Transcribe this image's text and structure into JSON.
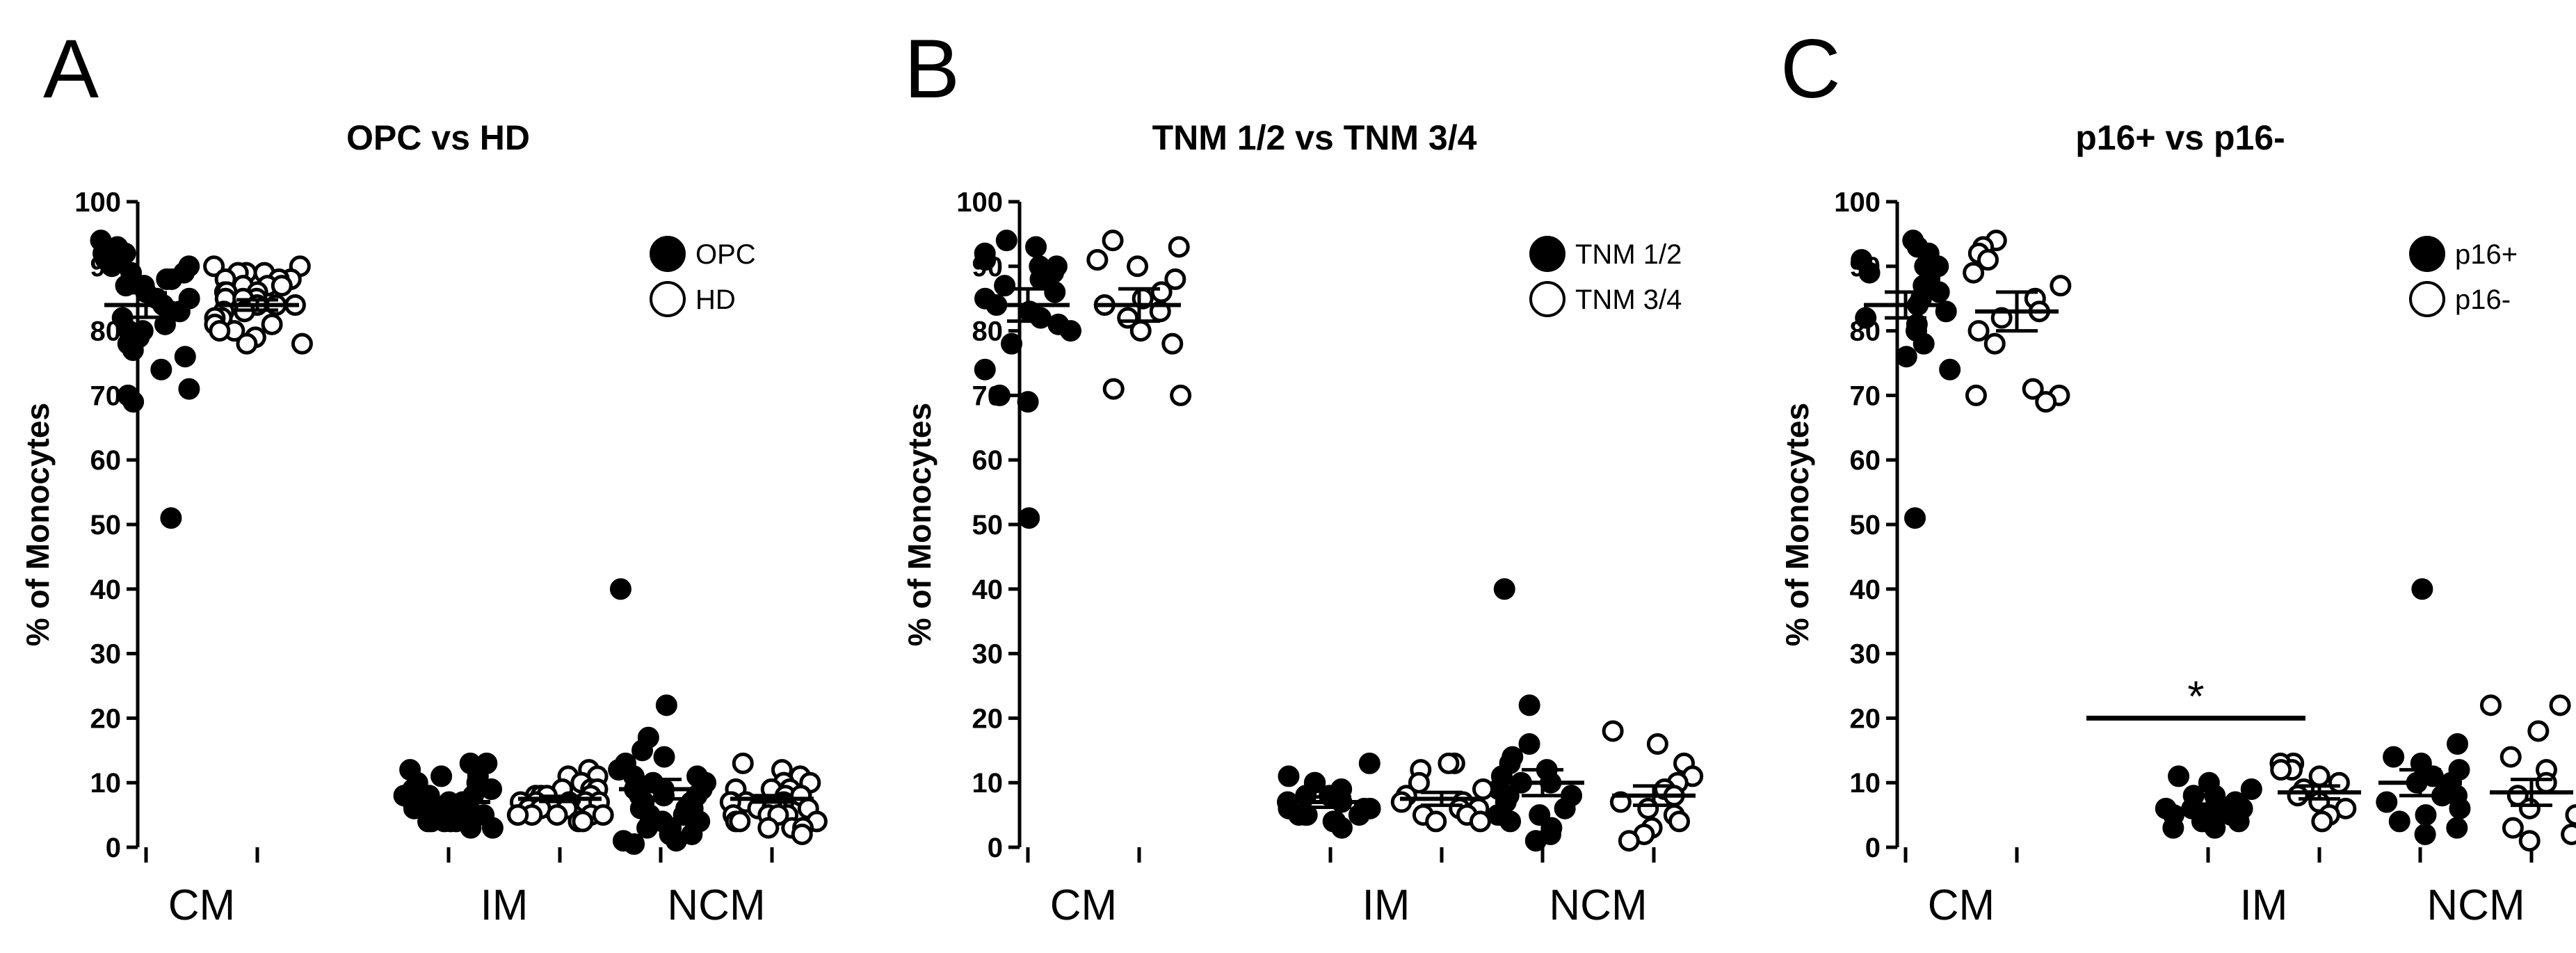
{
  "chart_data": [
    {
      "panel": "A",
      "type": "scatter",
      "title": "OPC vs HD",
      "ylabel": "% of Monocytes",
      "ylim": [
        0,
        100
      ],
      "yticks": [
        0,
        10,
        20,
        30,
        40,
        50,
        60,
        70,
        80,
        90,
        100
      ],
      "categories": [
        "CM",
        "IM",
        "NCM"
      ],
      "legend": [
        {
          "name": "OPC",
          "marker": "filled"
        },
        {
          "name": "HD",
          "marker": "open"
        }
      ],
      "series": [
        {
          "name": "OPC",
          "marker": "filled",
          "groups": [
            {
              "category": "CM",
              "mean": 84,
              "sem": 1.9,
              "values": [
                94,
                93,
                92,
                92,
                91,
                91,
                90,
                90,
                89,
                89,
                88,
                88,
                87,
                87,
                86,
                85,
                85,
                84,
                83,
                83,
                82,
                81,
                80,
                80,
                79,
                78,
                77,
                76,
                74,
                71,
                70,
                69,
                51
              ]
            },
            {
              "category": "IM",
              "mean": 7,
              "sem": 0.6,
              "values": [
                13,
                13,
                12,
                11,
                11,
                10,
                10,
                9,
                9,
                8,
                8,
                8,
                7,
                7,
                7,
                7,
                6,
                6,
                6,
                6,
                6,
                5,
                5,
                5,
                5,
                5,
                4,
                4,
                4,
                4,
                4,
                3,
                3
              ]
            },
            {
              "category": "NCM",
              "mean": 9,
              "sem": 1.5,
              "values": [
                40,
                22,
                17,
                15,
                14,
                13,
                12,
                11,
                11,
                10,
                10,
                9,
                9,
                9,
                8,
                8,
                8,
                7,
                7,
                6,
                6,
                6,
                5,
                5,
                4,
                4,
                3,
                3,
                2,
                2,
                1,
                1,
                0.5
              ]
            }
          ]
        },
        {
          "name": "HD",
          "marker": "open",
          "groups": [
            {
              "category": "CM",
              "mean": 84,
              "sem": 0.8,
              "values": [
                90,
                90,
                89,
                89,
                89,
                88,
                88,
                88,
                87,
                87,
                87,
                86,
                86,
                86,
                85,
                85,
                85,
                84,
                84,
                84,
                83,
                83,
                82,
                82,
                81,
                81,
                80,
                80,
                79,
                78,
                78
              ]
            },
            {
              "category": "IM",
              "mean": 7.5,
              "sem": 0.4,
              "values": [
                12,
                11,
                11,
                10,
                10,
                9,
                9,
                9,
                8,
                8,
                8,
                8,
                7,
                7,
                7,
                7,
                7,
                6,
                6,
                6,
                6,
                6,
                5,
                5,
                5,
                5,
                5,
                5,
                5,
                4,
                4
              ]
            },
            {
              "category": "NCM",
              "mean": 7.5,
              "sem": 0.5,
              "values": [
                13,
                12,
                11,
                10,
                10,
                10,
                9,
                9,
                9,
                8,
                8,
                8,
                7,
                7,
                7,
                7,
                6,
                6,
                6,
                6,
                5,
                5,
                5,
                5,
                4,
                4,
                4,
                3,
                3,
                3,
                2
              ]
            }
          ]
        }
      ]
    },
    {
      "panel": "B",
      "type": "scatter",
      "title": "TNM 1/2 vs TNM 3/4",
      "ylabel": "% of Monocytes",
      "ylim": [
        0,
        100
      ],
      "yticks": [
        0,
        10,
        20,
        30,
        40,
        50,
        60,
        70,
        80,
        90,
        100
      ],
      "categories": [
        "CM",
        "IM",
        "NCM"
      ],
      "legend": [
        {
          "name": "TNM 1/2",
          "marker": "filled"
        },
        {
          "name": "TNM 3/4",
          "marker": "open"
        }
      ],
      "series": [
        {
          "name": "TNM 1/2",
          "marker": "filled",
          "groups": [
            {
              "category": "CM",
              "mean": 84,
              "sem": 2.5,
              "values": [
                94,
                93,
                92,
                91,
                90,
                90,
                89,
                88,
                87,
                86,
                85,
                84,
                83,
                82,
                81,
                80,
                78,
                74,
                70,
                69,
                51
              ]
            },
            {
              "category": "IM",
              "mean": 7,
              "sem": 0.8,
              "values": [
                13,
                11,
                10,
                10,
                9,
                8,
                8,
                7,
                7,
                6,
                6,
                6,
                5,
                5,
                5,
                5,
                4,
                4,
                4,
                3
              ]
            },
            {
              "category": "NCM",
              "mean": 10,
              "sem": 2,
              "values": [
                40,
                22,
                16,
                14,
                13,
                12,
                11,
                10,
                10,
                9,
                8,
                8,
                7,
                6,
                5,
                5,
                4,
                3,
                2,
                1
              ]
            }
          ]
        },
        {
          "name": "TNM 3/4",
          "marker": "open",
          "groups": [
            {
              "category": "CM",
              "mean": 84,
              "sem": 2.5,
              "values": [
                94,
                93,
                91,
                90,
                88,
                86,
                85,
                84,
                83,
                82,
                80,
                78,
                71,
                70
              ]
            },
            {
              "category": "IM",
              "mean": 7.5,
              "sem": 1,
              "values": [
                13,
                13,
                12,
                10,
                9,
                8,
                7,
                7,
                6,
                6,
                5,
                5,
                4,
                4
              ]
            },
            {
              "category": "NCM",
              "mean": 8,
              "sem": 1.5,
              "values": [
                18,
                16,
                13,
                11,
                10,
                9,
                8,
                7,
                6,
                5,
                4,
                3,
                2,
                1
              ]
            }
          ]
        }
      ]
    },
    {
      "panel": "C",
      "type": "scatter",
      "title": "p16+ vs p16-",
      "ylabel": "% of Monocytes",
      "ylim": [
        0,
        100
      ],
      "yticks": [
        0,
        10,
        20,
        30,
        40,
        50,
        60,
        70,
        80,
        90,
        100
      ],
      "categories": [
        "CM",
        "IM",
        "NCM"
      ],
      "legend": [
        {
          "name": "p16+",
          "marker": "filled"
        },
        {
          "name": "p16-",
          "marker": "open"
        }
      ],
      "annotation": {
        "text": "*",
        "from_category": "CM",
        "to_category": "IM",
        "y": 20
      },
      "series": [
        {
          "name": "p16+",
          "marker": "filled",
          "groups": [
            {
              "category": "CM",
              "mean": 84,
              "sem": 2,
              "values": [
                94,
                93,
                92,
                91,
                90,
                90,
                89,
                88,
                87,
                86,
                85,
                84,
                83,
                82,
                81,
                80,
                78,
                76,
                74,
                51
              ]
            },
            {
              "category": "IM",
              "mean": 6,
              "sem": 0.7,
              "values": [
                11,
                10,
                9,
                8,
                8,
                7,
                7,
                6,
                6,
                6,
                5,
                5,
                5,
                4,
                4,
                4,
                3,
                3
              ]
            },
            {
              "category": "NCM",
              "mean": 10,
              "sem": 2,
              "values": [
                40,
                16,
                14,
                13,
                12,
                11,
                10,
                10,
                9,
                8,
                8,
                7,
                6,
                5,
                4,
                3,
                2
              ]
            }
          ]
        },
        {
          "name": "p16-",
          "marker": "open",
          "groups": [
            {
              "category": "CM",
              "mean": 83,
              "sem": 3,
              "values": [
                94,
                93,
                92,
                91,
                89,
                87,
                85,
                83,
                82,
                80,
                78,
                71,
                70,
                70,
                69
              ]
            },
            {
              "category": "IM",
              "mean": 8.5,
              "sem": 1,
              "values": [
                13,
                13,
                12,
                12,
                11,
                10,
                9,
                8,
                7,
                6,
                5,
                4
              ]
            },
            {
              "category": "NCM",
              "mean": 8.5,
              "sem": 2,
              "values": [
                22,
                22,
                18,
                14,
                12,
                10,
                8,
                6,
                5,
                3,
                2,
                1
              ]
            }
          ]
        }
      ]
    }
  ]
}
